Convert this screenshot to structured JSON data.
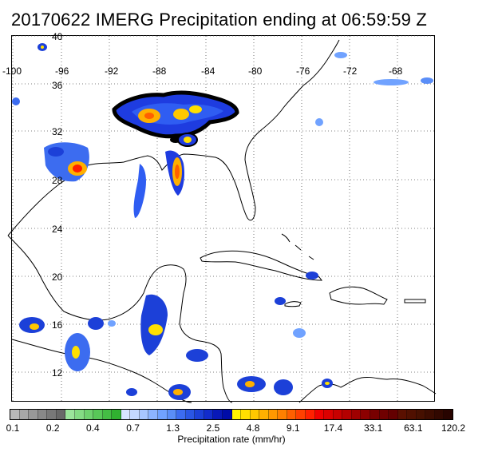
{
  "title": "20170622 IMERG Precipitation ending at 06:59:59 Z",
  "map": {
    "longitude_labels": [
      "-100",
      "-96",
      "-92",
      "-88",
      "-84",
      "-80",
      "-76",
      "-72",
      "-68"
    ],
    "latitude_labels": [
      "40",
      "36",
      "32",
      "28",
      "24",
      "20",
      "16",
      "12"
    ],
    "grid": "dotted",
    "region": "Gulf of Mexico, Caribbean Sea, southeastern United States"
  },
  "colorbar": {
    "label": "Precipitation rate (mm/hr)",
    "tick_labels": [
      "0.1",
      "0.2",
      "0.4",
      "0.7",
      "1.3",
      "2.5",
      "4.8",
      "9.1",
      "17.4",
      "33.1",
      "63.1",
      "120.2"
    ],
    "colors": [
      "#b8b8b8",
      "#a8a8a8",
      "#989898",
      "#888888",
      "#787878",
      "#686868",
      "#9be59b",
      "#84dc84",
      "#6ed26e",
      "#58c858",
      "#44bd44",
      "#30b230",
      "#d8e4ff",
      "#c4d8ff",
      "#a8c6ff",
      "#8cb4ff",
      "#70a2ff",
      "#5a8ef8",
      "#3c6cf0",
      "#2a56e4",
      "#1c40d8",
      "#122ccc",
      "#0818b8",
      "#000ca8",
      "#fff200",
      "#ffe000",
      "#ffc800",
      "#ffb000",
      "#ff9800",
      "#ff8000",
      "#ff6000",
      "#ff4000",
      "#ff2000",
      "#f00000",
      "#dc0000",
      "#c80000",
      "#b40000",
      "#a00000",
      "#8c0000",
      "#780000",
      "#700000",
      "#640000",
      "#5a1000",
      "#501000",
      "#461000",
      "#3c0c00",
      "#320800",
      "#280400"
    ]
  }
}
